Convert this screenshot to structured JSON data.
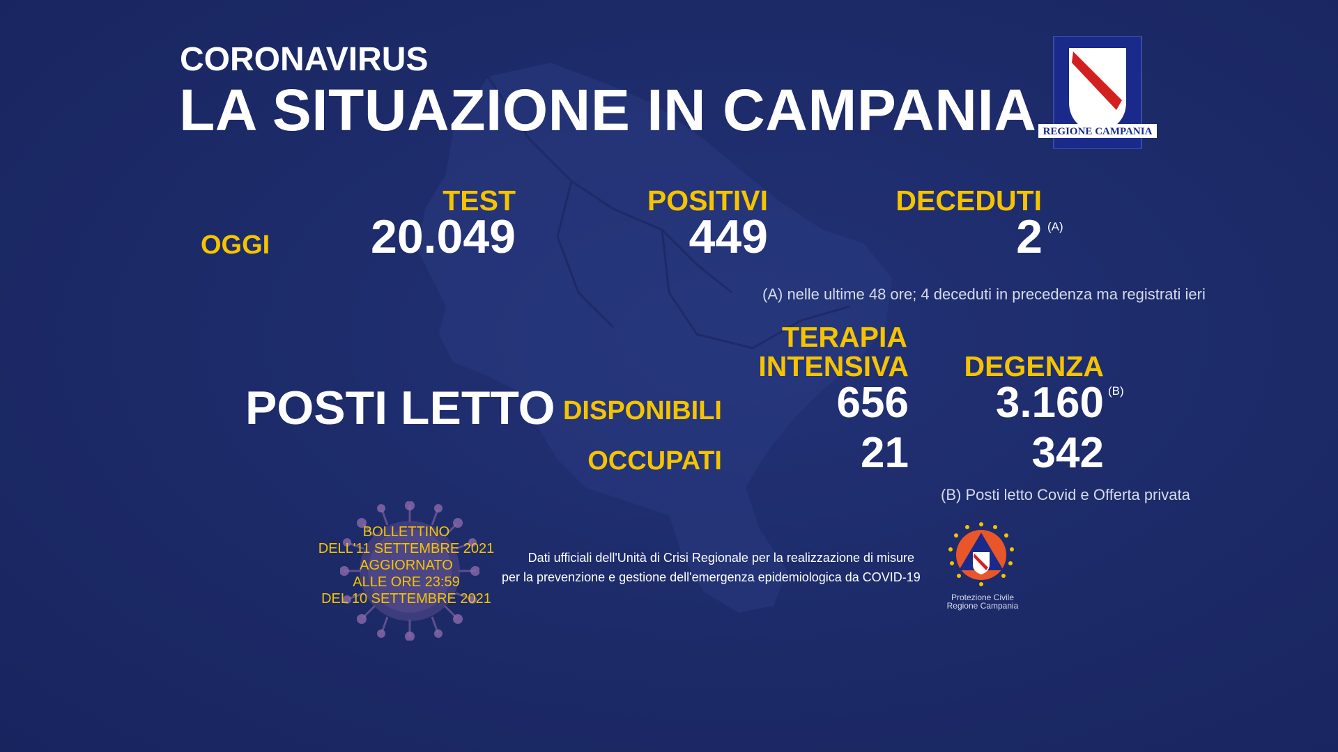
{
  "header": {
    "kicker": "CORONAVIRUS",
    "title": "LA SITUAZIONE IN CAMPANIA"
  },
  "logo": {
    "text": "REGIONE CAMPANIA",
    "icon": "regione-campania-logo-icon"
  },
  "today": {
    "row_label": "OGGI",
    "test": {
      "label": "TEST",
      "value": "20.049"
    },
    "positivi": {
      "label": "POSITIVI",
      "value": "449"
    },
    "deceduti": {
      "label": "DECEDUTI",
      "value": "2",
      "marker": "(A)"
    }
  },
  "note_a": "(A) nelle ultime 48 ore; 4 deceduti in precedenza ma registrati ieri",
  "beds": {
    "title": "POSTI LETTO",
    "col_ti_line1": "TERAPIA",
    "col_ti_line2": "INTENSIVA",
    "col_deg": "DEGENZA",
    "disponibili": {
      "label": "DISPONIBILI",
      "ti": "656",
      "degenza": "3.160",
      "marker": "(B)"
    },
    "occupati": {
      "label": "OCCUPATI",
      "ti": "21",
      "degenza": "342"
    }
  },
  "note_b": "(B) Posti letto Covid e Offerta privata",
  "bulletin": {
    "line1": "BOLLETTINO",
    "line2": "DELL'11  SETTEMBRE 2021",
    "line3": "AGGIORNATO",
    "line4": "ALLE ORE 23:59",
    "line5": "DEL 10 SETTEMBRE 2021"
  },
  "source": {
    "line1": "Dati ufficiali dell'Unità di Crisi Regionale per la realizzazione di misure",
    "line2": "per la prevenzione e gestione dell'emergenza epidemiologica da COVID-19"
  },
  "protezione": {
    "line1": "Protezione Civile",
    "line2": "Regione Campania",
    "icon": "protezione-civile-logo-icon"
  },
  "colors": {
    "background": "#1d2b6b",
    "accent": "#f5c400",
    "text": "#ffffff"
  }
}
